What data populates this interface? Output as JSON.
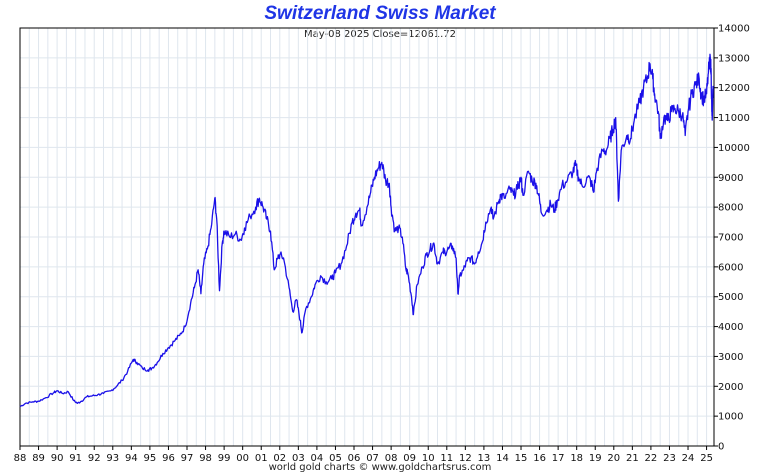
{
  "header": {
    "title": "Switzerland Swiss Market",
    "subtitle": "May-08  2025   Close=12061.72"
  },
  "footer": {
    "credit": "world gold charts © www.goldchartsrus.com"
  },
  "colors": {
    "line": "#1a10e8",
    "title": "#1f35e6",
    "grid": "#dfe6ee",
    "axis": "#000000"
  },
  "chart_data": {
    "type": "line",
    "title": "Switzerland Swiss Market",
    "xlabel": "",
    "ylabel": "",
    "xlim": [
      1988,
      2025.4
    ],
    "ylim": [
      0,
      14000
    ],
    "y_axis_position": "right",
    "grid": true,
    "x_tick_labels": [
      "88",
      "89",
      "90",
      "91",
      "92",
      "93",
      "94",
      "95",
      "96",
      "97",
      "98",
      "99",
      "00",
      "01",
      "02",
      "03",
      "04",
      "05",
      "06",
      "07",
      "08",
      "09",
      "10",
      "11",
      "12",
      "13",
      "14",
      "15",
      "16",
      "17",
      "18",
      "19",
      "20",
      "21",
      "22",
      "23",
      "24",
      "25"
    ],
    "y_ticks": [
      0,
      1000,
      2000,
      3000,
      4000,
      5000,
      6000,
      7000,
      8000,
      9000,
      10000,
      11000,
      12000,
      13000,
      14000
    ],
    "last_close": 12061.72,
    "last_date": "May-08 2025",
    "series": [
      {
        "values": [
          [
            1988.0,
            1320
          ],
          [
            1988.3,
            1430
          ],
          [
            1988.7,
            1480
          ],
          [
            1989.0,
            1500
          ],
          [
            1989.4,
            1620
          ],
          [
            1989.8,
            1780
          ],
          [
            1990.0,
            1850
          ],
          [
            1990.3,
            1760
          ],
          [
            1990.6,
            1820
          ],
          [
            1990.9,
            1520
          ],
          [
            1991.1,
            1430
          ],
          [
            1991.3,
            1500
          ],
          [
            1991.6,
            1650
          ],
          [
            1991.9,
            1680
          ],
          [
            1992.2,
            1720
          ],
          [
            1992.5,
            1760
          ],
          [
            1992.9,
            1850
          ],
          [
            1993.2,
            2000
          ],
          [
            1993.5,
            2200
          ],
          [
            1993.8,
            2500
          ],
          [
            1994.1,
            2900
          ],
          [
            1994.3,
            2800
          ],
          [
            1994.6,
            2600
          ],
          [
            1994.9,
            2550
          ],
          [
            1995.1,
            2600
          ],
          [
            1995.4,
            2800
          ],
          [
            1995.7,
            3100
          ],
          [
            1996.0,
            3300
          ],
          [
            1996.3,
            3500
          ],
          [
            1996.6,
            3700
          ],
          [
            1996.9,
            4000
          ],
          [
            1997.2,
            4800
          ],
          [
            1997.4,
            5300
          ],
          [
            1997.6,
            5900
          ],
          [
            1997.75,
            5100
          ],
          [
            1997.9,
            6100
          ],
          [
            1998.1,
            6600
          ],
          [
            1998.3,
            7300
          ],
          [
            1998.5,
            8300
          ],
          [
            1998.6,
            7600
          ],
          [
            1998.75,
            5200
          ],
          [
            1998.9,
            6800
          ],
          [
            1999.0,
            7200
          ],
          [
            1999.3,
            7000
          ],
          [
            1999.6,
            7100
          ],
          [
            1999.9,
            6900
          ],
          [
            2000.1,
            7300
          ],
          [
            2000.4,
            7700
          ],
          [
            2000.7,
            8000
          ],
          [
            2000.9,
            8300
          ],
          [
            2001.1,
            8000
          ],
          [
            2001.3,
            7600
          ],
          [
            2001.5,
            7200
          ],
          [
            2001.7,
            5900
          ],
          [
            2001.9,
            6300
          ],
          [
            2002.0,
            6400
          ],
          [
            2002.2,
            6300
          ],
          [
            2002.5,
            5300
          ],
          [
            2002.7,
            4500
          ],
          [
            2002.9,
            4900
          ],
          [
            2003.1,
            4200
          ],
          [
            2003.2,
            3800
          ],
          [
            2003.4,
            4600
          ],
          [
            2003.7,
            5000
          ],
          [
            2003.9,
            5400
          ],
          [
            2004.2,
            5700
          ],
          [
            2004.5,
            5500
          ],
          [
            2004.8,
            5600
          ],
          [
            2005.0,
            5800
          ],
          [
            2005.3,
            6100
          ],
          [
            2005.6,
            6700
          ],
          [
            2005.9,
            7500
          ],
          [
            2006.1,
            7800
          ],
          [
            2006.3,
            7900
          ],
          [
            2006.4,
            7400
          ],
          [
            2006.7,
            8000
          ],
          [
            2006.9,
            8500
          ],
          [
            2007.1,
            9000
          ],
          [
            2007.3,
            9300
          ],
          [
            2007.5,
            9500
          ],
          [
            2007.7,
            8900
          ],
          [
            2007.9,
            8800
          ],
          [
            2008.0,
            8000
          ],
          [
            2008.2,
            7200
          ],
          [
            2008.4,
            7300
          ],
          [
            2008.6,
            7000
          ],
          [
            2008.8,
            5900
          ],
          [
            2008.9,
            5800
          ],
          [
            2009.1,
            5000
          ],
          [
            2009.2,
            4400
          ],
          [
            2009.4,
            5400
          ],
          [
            2009.7,
            6000
          ],
          [
            2009.9,
            6400
          ],
          [
            2010.1,
            6600
          ],
          [
            2010.3,
            6800
          ],
          [
            2010.5,
            6100
          ],
          [
            2010.8,
            6500
          ],
          [
            2010.9,
            6500
          ],
          [
            2011.1,
            6600
          ],
          [
            2011.3,
            6700
          ],
          [
            2011.5,
            6300
          ],
          [
            2011.6,
            5100
          ],
          [
            2011.7,
            5700
          ],
          [
            2011.9,
            5900
          ],
          [
            2012.1,
            6200
          ],
          [
            2012.3,
            6300
          ],
          [
            2012.5,
            6100
          ],
          [
            2012.7,
            6500
          ],
          [
            2012.9,
            6800
          ],
          [
            2013.1,
            7500
          ],
          [
            2013.4,
            8000
          ],
          [
            2013.5,
            7600
          ],
          [
            2013.8,
            8200
          ],
          [
            2013.9,
            8400
          ],
          [
            2014.1,
            8300
          ],
          [
            2014.4,
            8600
          ],
          [
            2014.6,
            8400
          ],
          [
            2014.8,
            8600
          ],
          [
            2015.0,
            9000
          ],
          [
            2015.1,
            8400
          ],
          [
            2015.4,
            9200
          ],
          [
            2015.6,
            8900
          ],
          [
            2015.8,
            8800
          ],
          [
            2015.95,
            8400
          ],
          [
            2016.1,
            7800
          ],
          [
            2016.4,
            7900
          ],
          [
            2016.6,
            8100
          ],
          [
            2016.8,
            7900
          ],
          [
            2016.95,
            8200
          ],
          [
            2017.2,
            8700
          ],
          [
            2017.5,
            8900
          ],
          [
            2017.8,
            9200
          ],
          [
            2017.95,
            9400
          ],
          [
            2018.1,
            9000
          ],
          [
            2018.3,
            8700
          ],
          [
            2018.6,
            9000
          ],
          [
            2018.8,
            8800
          ],
          [
            2018.9,
            8500
          ],
          [
            2019.1,
            9300
          ],
          [
            2019.4,
            9900
          ],
          [
            2019.6,
            9900
          ],
          [
            2019.8,
            10300
          ],
          [
            2019.95,
            10600
          ],
          [
            2020.1,
            11000
          ],
          [
            2020.2,
            9200
          ],
          [
            2020.25,
            8200
          ],
          [
            2020.4,
            9900
          ],
          [
            2020.7,
            10400
          ],
          [
            2020.9,
            10300
          ],
          [
            2021.1,
            10900
          ],
          [
            2021.4,
            11500
          ],
          [
            2021.6,
            12000
          ],
          [
            2021.8,
            12300
          ],
          [
            2021.95,
            12800
          ],
          [
            2022.1,
            12300
          ],
          [
            2022.2,
            11800
          ],
          [
            2022.4,
            11200
          ],
          [
            2022.5,
            10300
          ],
          [
            2022.7,
            11000
          ],
          [
            2022.9,
            10900
          ],
          [
            2023.1,
            11200
          ],
          [
            2023.3,
            11300
          ],
          [
            2023.5,
            11200
          ],
          [
            2023.7,
            11100
          ],
          [
            2023.85,
            10400
          ],
          [
            2024.0,
            11200
          ],
          [
            2024.2,
            11800
          ],
          [
            2024.4,
            12100
          ],
          [
            2024.6,
            12300
          ],
          [
            2024.7,
            11800
          ],
          [
            2024.85,
            11600
          ],
          [
            2025.0,
            11800
          ],
          [
            2025.1,
            12500
          ],
          [
            2025.2,
            13000
          ],
          [
            2025.25,
            12400
          ],
          [
            2025.28,
            11200
          ],
          [
            2025.31,
            11000
          ],
          [
            2025.35,
            12061.72
          ]
        ]
      }
    ]
  }
}
